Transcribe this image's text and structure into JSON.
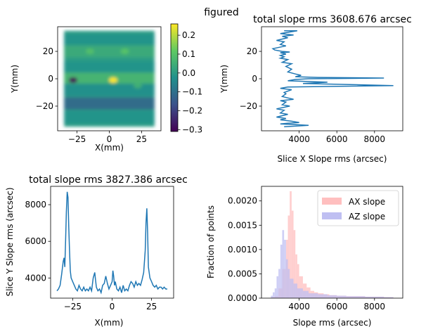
{
  "figure": {
    "suptitle": "figured"
  },
  "chart_data": [
    {
      "type": "heatmap",
      "xlabel": "X(mm)",
      "ylabel": "Y(mm)",
      "xlim": [
        -40,
        40
      ],
      "ylim": [
        -38,
        38
      ],
      "extent": [
        -35,
        35,
        -35,
        35
      ],
      "xticks": [
        -25,
        0,
        25
      ],
      "yticks": [
        -20,
        0,
        20
      ],
      "colormap": "viridis",
      "colorbar": {
        "vmin": -0.31,
        "vmax": 0.26,
        "ticks": [
          -0.3,
          -0.2,
          -0.1,
          0.0,
          0.1,
          0.2
        ]
      },
      "bands": [
        {
          "y": 28,
          "value": -0.02
        },
        {
          "y": 20,
          "value": 0.04
        },
        {
          "y": 8,
          "value": -0.02
        },
        {
          "y": 0,
          "value": 0.07
        },
        {
          "y": -8,
          "value": -0.03
        },
        {
          "y": -18,
          "value": -0.12
        },
        {
          "y": -28,
          "value": -0.02
        }
      ],
      "features": [
        {
          "x": -28,
          "y": -1,
          "value": -0.31
        },
        {
          "x": 3,
          "y": -1,
          "value": 0.26
        },
        {
          "x": 22,
          "y": -5,
          "value": 0.05
        },
        {
          "x": -15,
          "y": 20,
          "value": 0.09
        },
        {
          "x": 12,
          "y": 20,
          "value": 0.1
        }
      ]
    },
    {
      "type": "line",
      "title": "total slope rms 3608.676 arcsec",
      "xlabel": "Slice X Slope rms (arcsec)",
      "ylabel": "Y(mm)",
      "xlim": [
        2000,
        9500
      ],
      "ylim": [
        -38,
        38
      ],
      "xticks": [
        4000,
        6000,
        8000
      ],
      "yticks": [
        -20,
        0,
        20
      ],
      "color": "#1f77b4",
      "points": [
        [
          3200,
          35
        ],
        [
          3900,
          35
        ],
        [
          3000,
          33
        ],
        [
          3700,
          32
        ],
        [
          3100,
          31
        ],
        [
          3400,
          30
        ],
        [
          2800,
          28
        ],
        [
          3200,
          27
        ],
        [
          3000,
          25
        ],
        [
          3300,
          24
        ],
        [
          2600,
          22
        ],
        [
          2700,
          21
        ],
        [
          3100,
          20
        ],
        [
          3500,
          19.5
        ],
        [
          3000,
          19
        ],
        [
          3300,
          18
        ],
        [
          3000,
          17
        ],
        [
          3200,
          16
        ],
        [
          3000,
          15
        ],
        [
          3400,
          14
        ],
        [
          3100,
          12
        ],
        [
          3600,
          11
        ],
        [
          3300,
          9
        ],
        [
          3600,
          7
        ],
        [
          3400,
          5
        ],
        [
          3800,
          3.5
        ],
        [
          4100,
          2.5
        ],
        [
          3800,
          1.5
        ],
        [
          5000,
          1
        ],
        [
          8500,
          0.5
        ],
        [
          4500,
          0
        ],
        [
          3800,
          -0.5
        ],
        [
          3400,
          -1.5
        ],
        [
          5500,
          -2.5
        ],
        [
          4200,
          -3.5
        ],
        [
          9000,
          -5
        ],
        [
          3400,
          -6
        ],
        [
          3000,
          -7
        ],
        [
          3600,
          -8
        ],
        [
          3200,
          -10
        ],
        [
          3300,
          -11
        ],
        [
          3100,
          -13
        ],
        [
          3700,
          -15
        ],
        [
          3000,
          -16
        ],
        [
          3300,
          -17
        ],
        [
          3100,
          -19
        ],
        [
          3500,
          -20
        ],
        [
          2800,
          -22
        ],
        [
          3200,
          -23
        ],
        [
          3000,
          -25
        ],
        [
          3400,
          -26
        ],
        [
          2800,
          -28
        ],
        [
          3300,
          -29
        ],
        [
          3000,
          -30
        ],
        [
          3600,
          -31
        ],
        [
          4000,
          -32
        ],
        [
          3400,
          -32.5
        ],
        [
          3000,
          -33
        ],
        [
          3800,
          -33.5
        ],
        [
          4500,
          -34
        ],
        [
          3200,
          -35
        ]
      ]
    },
    {
      "type": "line",
      "title": "total slope rms 3827.386 arcsec",
      "xlabel": "X(mm)",
      "ylabel": "Slice Y Slope rms (arcsec)",
      "xlim": [
        -39,
        39
      ],
      "ylim": [
        2900,
        9000
      ],
      "xticks": [
        -25,
        0,
        25
      ],
      "yticks": [
        4000,
        6000,
        8000
      ],
      "color": "#1f77b4",
      "points": [
        [
          -35,
          3300
        ],
        [
          -34,
          3400
        ],
        [
          -33,
          3600
        ],
        [
          -32,
          4200
        ],
        [
          -31,
          4900
        ],
        [
          -30.5,
          5100
        ],
        [
          -30,
          4600
        ],
        [
          -29.5,
          6000
        ],
        [
          -29,
          7600
        ],
        [
          -28.5,
          8700
        ],
        [
          -28,
          8400
        ],
        [
          -27.5,
          6800
        ],
        [
          -27,
          5500
        ],
        [
          -26.5,
          4400
        ],
        [
          -26,
          4000
        ],
        [
          -25,
          3800
        ],
        [
          -24,
          3600
        ],
        [
          -23,
          3400
        ],
        [
          -22,
          3300
        ],
        [
          -21,
          3600
        ],
        [
          -20,
          3400
        ],
        [
          -19,
          3300
        ],
        [
          -18,
          3500
        ],
        [
          -17,
          3300
        ],
        [
          -16,
          3400
        ],
        [
          -15,
          3300
        ],
        [
          -14,
          3500
        ],
        [
          -13,
          3300
        ],
        [
          -12,
          4000
        ],
        [
          -11,
          4300
        ],
        [
          -10.5,
          3900
        ],
        [
          -10,
          3500
        ],
        [
          -9,
          3300
        ],
        [
          -8,
          3400
        ],
        [
          -7,
          3200
        ],
        [
          -6,
          3600
        ],
        [
          -5,
          3700
        ],
        [
          -4,
          4100
        ],
        [
          -3,
          3700
        ],
        [
          -2,
          3400
        ],
        [
          -1,
          3600
        ],
        [
          0,
          3800
        ],
        [
          0.5,
          4400
        ],
        [
          1,
          4100
        ],
        [
          1.5,
          3600
        ],
        [
          2,
          3800
        ],
        [
          3,
          3400
        ],
        [
          4,
          3300
        ],
        [
          5,
          3500
        ],
        [
          6,
          3200
        ],
        [
          7,
          3600
        ],
        [
          8,
          3300
        ],
        [
          9,
          3400
        ],
        [
          10,
          3300
        ],
        [
          11,
          3600
        ],
        [
          12,
          3800
        ],
        [
          13,
          3700
        ],
        [
          14,
          3500
        ],
        [
          15,
          3800
        ],
        [
          16,
          3600
        ],
        [
          17,
          3700
        ],
        [
          18,
          3600
        ],
        [
          19,
          3900
        ],
        [
          20,
          4300
        ],
        [
          21,
          5500
        ],
        [
          21.5,
          7000
        ],
        [
          22,
          7800
        ],
        [
          22.5,
          6500
        ],
        [
          23,
          4600
        ],
        [
          24,
          4000
        ],
        [
          25,
          3800
        ],
        [
          26,
          3600
        ],
        [
          27,
          3500
        ],
        [
          28,
          3600
        ],
        [
          29,
          3400
        ],
        [
          30,
          3500
        ],
        [
          31,
          3500
        ],
        [
          32,
          3400
        ],
        [
          33,
          3500
        ],
        [
          34,
          3400
        ],
        [
          35,
          3400
        ]
      ]
    },
    {
      "type": "bar",
      "subtype": "histogram",
      "xlabel": "Slope rms (arcsec)",
      "ylabel": "Fraction of points",
      "xlim": [
        2000,
        9500
      ],
      "ylim": [
        0,
        0.0023
      ],
      "xticks": [
        4000,
        6000,
        8000
      ],
      "yticks": [
        0.0,
        0.0005,
        0.001,
        0.0015,
        0.002
      ],
      "ytick_labels": [
        "0.0000",
        "0.0005",
        "0.0010",
        "0.0015",
        "0.0020"
      ],
      "legend": {
        "placement": "top-right"
      },
      "series": [
        {
          "name": "AX slope",
          "color": "#ffbfbf",
          "bin_edges": [
            2500,
            2700,
            2900,
            3100,
            3300,
            3400,
            3500,
            3600,
            3700,
            3800,
            3900,
            4000,
            4200,
            4400,
            4600,
            4800,
            5000,
            5300,
            5600,
            6000,
            6500,
            7000,
            7500,
            8000,
            8500,
            9000
          ],
          "values": [
            2e-05,
            4e-05,
            0.0002,
            0.0006,
            0.0012,
            0.0017,
            0.0022,
            0.0018,
            0.0014,
            0.0009,
            0.0007,
            0.00045,
            0.0003,
            0.00022,
            0.00015,
            0.00012,
            0.0001,
            8e-05,
            6e-05,
            5e-05,
            4e-05,
            4e-05,
            3e-05,
            3e-05,
            2e-05
          ]
        },
        {
          "name": "AZ slope",
          "color": "#bfbff2",
          "bin_edges": [
            2500,
            2600,
            2700,
            2800,
            2900,
            3000,
            3100,
            3200,
            3300,
            3400,
            3500,
            3700,
            3900,
            4200,
            4500,
            5000,
            5500,
            6000,
            6500,
            7000,
            7500,
            8000,
            8500,
            9000
          ],
          "values": [
            5e-05,
            0.00012,
            0.0002,
            0.00045,
            0.0006,
            0.0011,
            0.0014,
            0.0012,
            0.0008,
            0.0006,
            0.0004,
            0.0003,
            0.0002,
            0.00015,
            0.0001,
            8e-05,
            6e-05,
            5e-05,
            4e-05,
            4e-05,
            3e-05,
            3e-05,
            2e-05
          ]
        }
      ]
    }
  ]
}
